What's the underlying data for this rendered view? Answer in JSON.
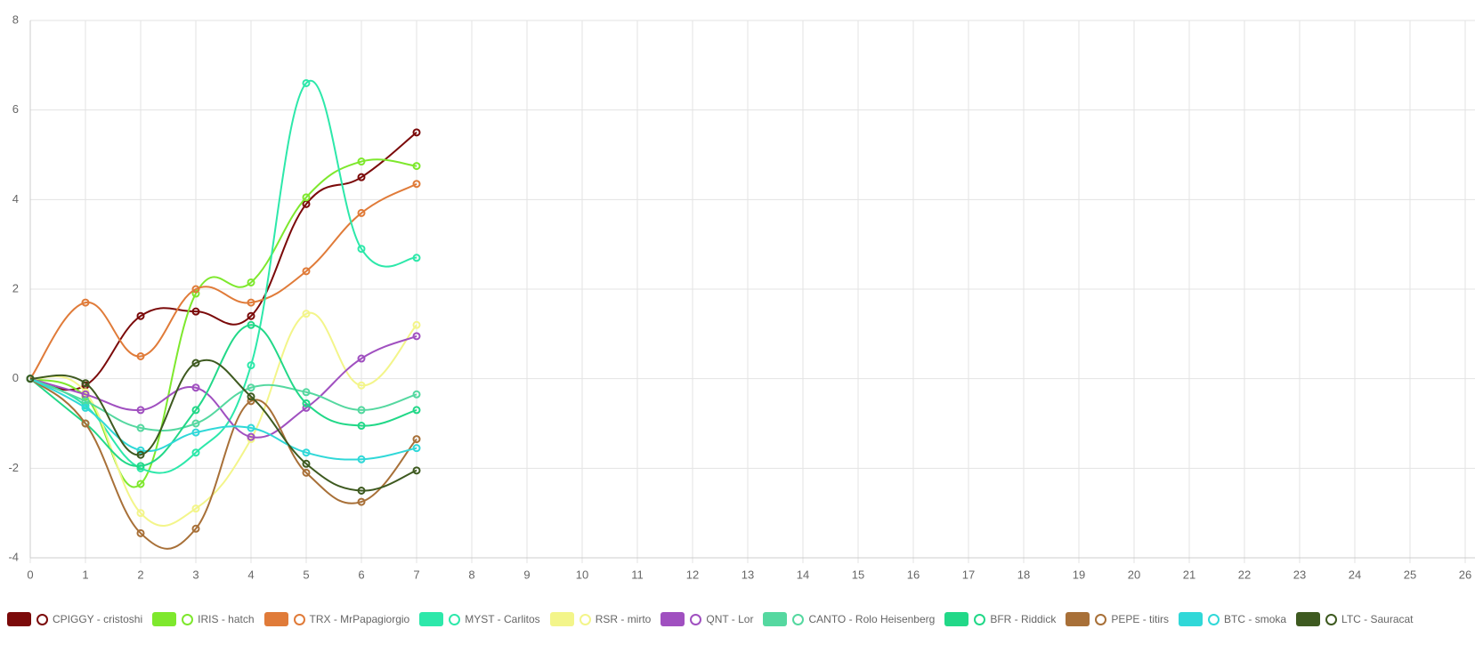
{
  "chart_data": {
    "type": "line",
    "x": [
      0,
      1,
      2,
      3,
      4,
      5,
      6,
      7
    ],
    "xlim": [
      0,
      26.2
    ],
    "xticks": [
      0,
      1,
      2,
      3,
      4,
      5,
      6,
      7,
      8,
      9,
      10,
      11,
      12,
      13,
      14,
      15,
      16,
      17,
      18,
      19,
      20,
      21,
      22,
      23,
      24,
      25,
      26
    ],
    "ylim": [
      -4,
      8
    ],
    "yticks": [
      -4,
      -2,
      0,
      2,
      4,
      6,
      8
    ],
    "grid": true,
    "series": [
      {
        "name": "CPIGGY - cristoshi",
        "color": "#7b0a0a",
        "values": [
          0,
          -0.15,
          1.4,
          1.5,
          1.4,
          3.9,
          4.5,
          5.5
        ]
      },
      {
        "name": "IRIS - hatch",
        "color": "#7ee82d",
        "values": [
          0,
          -0.4,
          -2.35,
          1.9,
          2.15,
          4.05,
          4.85,
          4.75
        ]
      },
      {
        "name": "TRX - MrPapagiorgio",
        "color": "#e07b39",
        "values": [
          0,
          1.7,
          0.5,
          2.0,
          1.7,
          2.4,
          3.7,
          4.35
        ]
      },
      {
        "name": "MYST - Carlitos",
        "color": "#2de8aa",
        "values": [
          0,
          -0.6,
          -2.0,
          -1.65,
          0.3,
          6.6,
          2.9,
          2.7
        ]
      },
      {
        "name": "RSR - mirto",
        "color": "#f3f58a",
        "values": [
          0,
          -0.3,
          -3.0,
          -2.9,
          -1.35,
          1.45,
          -0.15,
          1.2
        ]
      },
      {
        "name": "QNT - Lor",
        "color": "#a050c0",
        "values": [
          0,
          -0.35,
          -0.7,
          -0.2,
          -1.3,
          -0.65,
          0.45,
          0.95
        ]
      },
      {
        "name": "CANTO - Rolo Heisenberg",
        "color": "#55d8a0",
        "values": [
          0,
          -0.5,
          -1.1,
          -1.0,
          -0.2,
          -0.3,
          -0.7,
          -0.35
        ]
      },
      {
        "name": "BFR - Riddick",
        "color": "#22d888",
        "values": [
          0,
          -1.0,
          -1.95,
          -0.7,
          1.2,
          -0.55,
          -1.05,
          -0.7
        ]
      },
      {
        "name": "PEPE - titirs",
        "color": "#a87038",
        "values": [
          0,
          -1.0,
          -3.45,
          -3.35,
          -0.5,
          -2.1,
          -2.75,
          -1.35
        ]
      },
      {
        "name": "BTC - smoka",
        "color": "#30d8d8",
        "values": [
          0,
          -0.65,
          -1.6,
          -1.2,
          -1.1,
          -1.65,
          -1.8,
          -1.55
        ]
      },
      {
        "name": "LTC - Sauracat",
        "color": "#3e5a20",
        "values": [
          0,
          -0.1,
          -1.7,
          0.35,
          -0.4,
          -1.9,
          -2.5,
          -2.05
        ]
      }
    ]
  }
}
